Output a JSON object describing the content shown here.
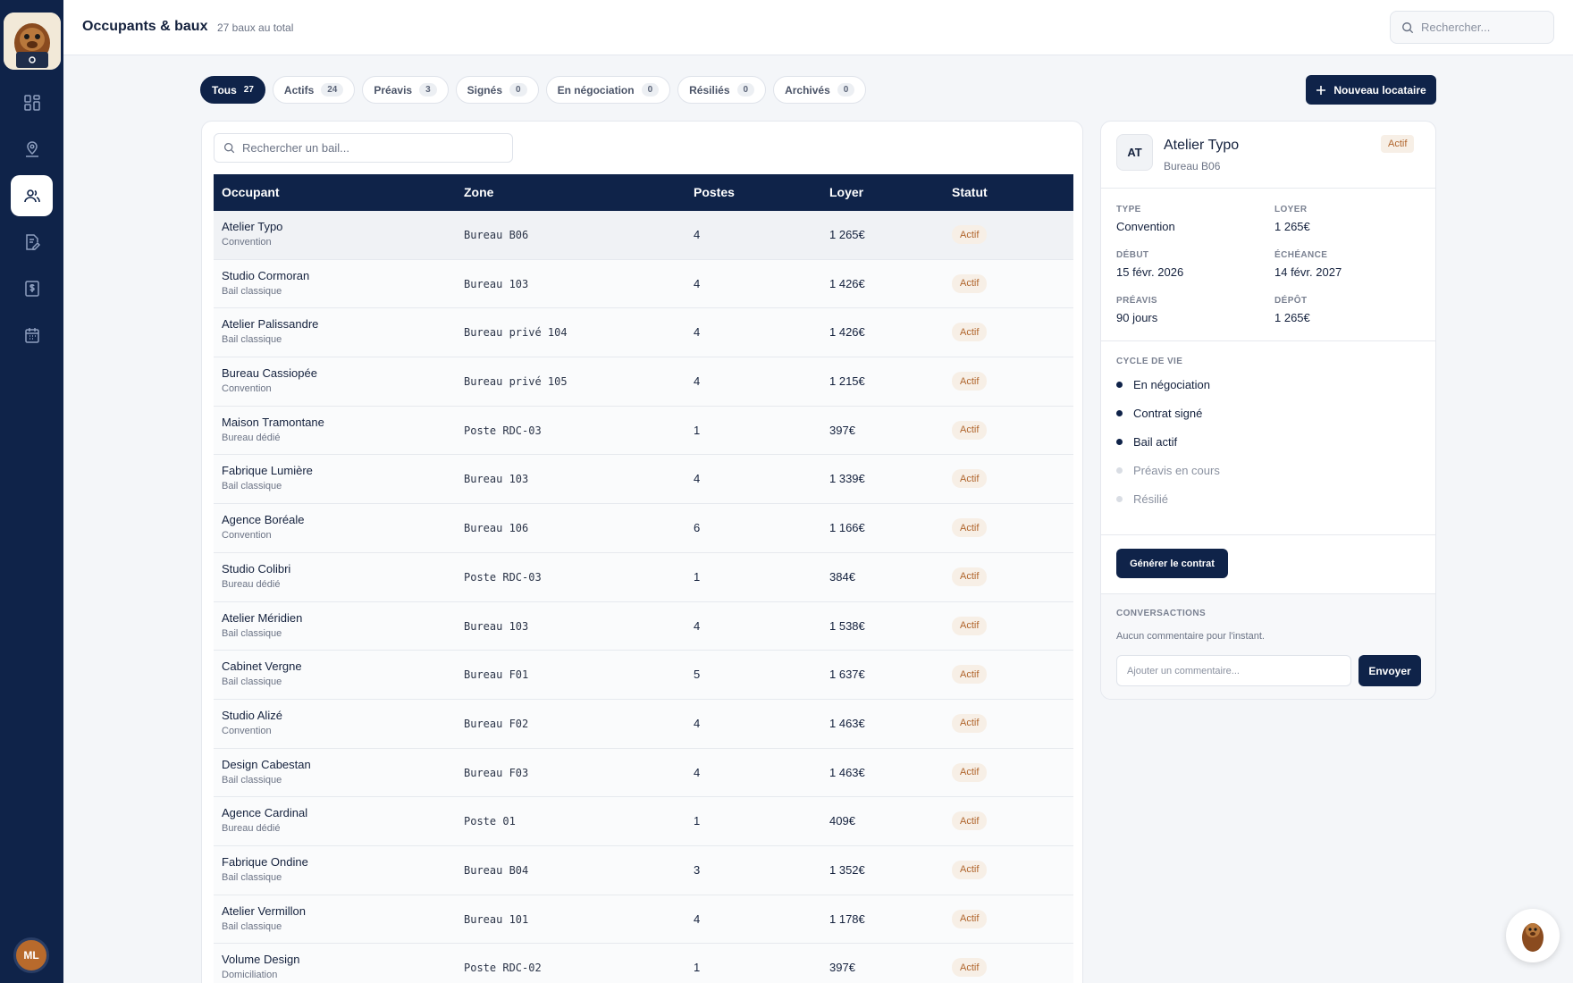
{
  "header": {
    "title": "Occupants & baux",
    "subtitle": "27 baux au total",
    "search_placeholder": "Rechercher..."
  },
  "sidebar": {
    "items": [
      {
        "name": "dashboard",
        "icon": "grid-icon"
      },
      {
        "name": "spaces",
        "icon": "location-person-icon"
      },
      {
        "name": "occupants",
        "icon": "users-icon",
        "active": true
      },
      {
        "name": "contracts",
        "icon": "document-edit-icon"
      },
      {
        "name": "billing",
        "icon": "invoice-dollar-icon"
      },
      {
        "name": "calendar",
        "icon": "calendar-icon"
      }
    ],
    "user_initials": "ML"
  },
  "filters": [
    {
      "label": "Tous",
      "count": "27",
      "active": true
    },
    {
      "label": "Actifs",
      "count": "24"
    },
    {
      "label": "Préavis",
      "count": "3"
    },
    {
      "label": "Signés",
      "count": "0"
    },
    {
      "label": "En négociation",
      "count": "0"
    },
    {
      "label": "Résiliés",
      "count": "0"
    },
    {
      "label": "Archivés",
      "count": "0"
    }
  ],
  "new_button_label": "Nouveau locataire",
  "table": {
    "search_placeholder": "Rechercher un bail...",
    "headers": [
      "Occupant",
      "Zone",
      "Postes",
      "Loyer",
      "Statut"
    ],
    "rows": [
      {
        "name": "Atelier Typo",
        "type": "Convention",
        "zone": "Bureau B06",
        "posts": "4",
        "rent": "1 265€",
        "status": "Actif"
      },
      {
        "name": "Studio Cormoran",
        "type": "Bail classique",
        "zone": "Bureau 103",
        "posts": "4",
        "rent": "1 426€",
        "status": "Actif"
      },
      {
        "name": "Atelier Palissandre",
        "type": "Bail classique",
        "zone": "Bureau privé 104",
        "posts": "4",
        "rent": "1 426€",
        "status": "Actif"
      },
      {
        "name": "Bureau Cassiopée",
        "type": "Convention",
        "zone": "Bureau privé 105",
        "posts": "4",
        "rent": "1 215€",
        "status": "Actif"
      },
      {
        "name": "Maison Tramontane",
        "type": "Bureau dédié",
        "zone": "Poste RDC-03",
        "posts": "1",
        "rent": "397€",
        "status": "Actif"
      },
      {
        "name": "Fabrique Lumière",
        "type": "Bail classique",
        "zone": "Bureau 103",
        "posts": "4",
        "rent": "1 339€",
        "status": "Actif"
      },
      {
        "name": "Agence Boréale",
        "type": "Convention",
        "zone": "Bureau 106",
        "posts": "6",
        "rent": "1 166€",
        "status": "Actif"
      },
      {
        "name": "Studio Colibri",
        "type": "Bureau dédié",
        "zone": "Poste RDC-03",
        "posts": "1",
        "rent": "384€",
        "status": "Actif"
      },
      {
        "name": "Atelier Méridien",
        "type": "Bail classique",
        "zone": "Bureau 103",
        "posts": "4",
        "rent": "1 538€",
        "status": "Actif"
      },
      {
        "name": "Cabinet Vergne",
        "type": "Bail classique",
        "zone": "Bureau F01",
        "posts": "5",
        "rent": "1 637€",
        "status": "Actif"
      },
      {
        "name": "Studio Alizé",
        "type": "Convention",
        "zone": "Bureau F02",
        "posts": "4",
        "rent": "1 463€",
        "status": "Actif"
      },
      {
        "name": "Design Cabestan",
        "type": "Bail classique",
        "zone": "Bureau F03",
        "posts": "4",
        "rent": "1 463€",
        "status": "Actif"
      },
      {
        "name": "Agence Cardinal",
        "type": "Bureau dédié",
        "zone": "Poste 01",
        "posts": "1",
        "rent": "409€",
        "status": "Actif"
      },
      {
        "name": "Fabrique Ondine",
        "type": "Bail classique",
        "zone": "Bureau B04",
        "posts": "3",
        "rent": "1 352€",
        "status": "Actif"
      },
      {
        "name": "Atelier Vermillon",
        "type": "Bail classique",
        "zone": "Bureau 101",
        "posts": "4",
        "rent": "1 178€",
        "status": "Actif"
      },
      {
        "name": "Volume Design",
        "type": "Domiciliation",
        "zone": "Poste RDC-02",
        "posts": "1",
        "rent": "397€",
        "status": "Actif"
      }
    ]
  },
  "detail": {
    "initials": "AT",
    "name": "Atelier Typo",
    "zone": "Bureau B06",
    "status": "Actif",
    "fields": [
      {
        "label": "TYPE",
        "value": "Convention"
      },
      {
        "label": "LOYER",
        "value": "1 265€"
      },
      {
        "label": "DÉBUT",
        "value": "15 févr. 2026"
      },
      {
        "label": "ÉCHÉANCE",
        "value": "14 févr. 2027"
      },
      {
        "label": "PRÉAVIS",
        "value": "90 jours"
      },
      {
        "label": "DÉPÔT",
        "value": "1 265€"
      }
    ],
    "lifecycle_label": "CYCLE DE VIE",
    "lifecycle": [
      {
        "label": "En négociation",
        "done": true
      },
      {
        "label": "Contrat signé",
        "done": true
      },
      {
        "label": "Bail actif",
        "done": true
      },
      {
        "label": "Préavis en cours",
        "done": false
      },
      {
        "label": "Résilié",
        "done": false
      }
    ],
    "generate_label": "Générer le contrat",
    "conversations_label": "CONVERSACTIONS",
    "no_comments": "Aucun commentaire pour l'instant.",
    "comment_placeholder": "Ajouter un commentaire...",
    "send_label": "Envoyer"
  },
  "colors": {
    "navy": "#0f2349",
    "status_bg": "#f7efe6",
    "status_fg": "#b0652c"
  }
}
